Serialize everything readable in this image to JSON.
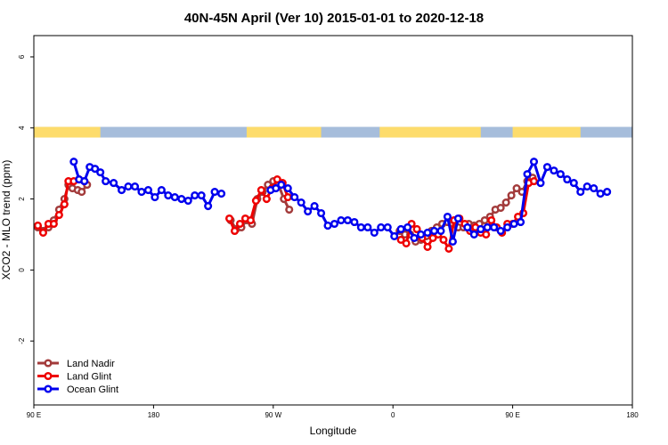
{
  "chart_data": {
    "type": "line",
    "title": "40N-45N April (Ver 10)   2015-01-01 to 2020-12-18",
    "xlabel": "Longitude",
    "ylabel": "XCO2 - MLO trend (ppm)",
    "xlim": [
      90,
      540
    ],
    "ylim": [
      -3.8,
      6.6
    ],
    "x_ticks": [
      {
        "value": 90,
        "label": "90 E"
      },
      {
        "value": 180,
        "label": "180"
      },
      {
        "value": 270,
        "label": "90 W"
      },
      {
        "value": 360,
        "label": "0"
      },
      {
        "value": 450,
        "label": "90 E"
      },
      {
        "value": 540,
        "label": "180"
      }
    ],
    "y_ticks": [
      {
        "value": -2,
        "label": "-2"
      },
      {
        "value": 0,
        "label": "0"
      },
      {
        "value": 2,
        "label": "2"
      },
      {
        "value": 4,
        "label": "4"
      },
      {
        "value": 6,
        "label": "6"
      }
    ],
    "surface_strip": {
      "y_range": [
        3.73,
        4.03
      ],
      "land_color": "#fddc6c",
      "ocean_color": "#a6bddb",
      "land_segments": [
        [
          90,
          140
        ],
        [
          250,
          306
        ],
        [
          350,
          426
        ],
        [
          450,
          501
        ]
      ]
    },
    "legend": {
      "position": "bottom-left",
      "entries": [
        "Land Nadir",
        "Land Glint",
        "Ocean Glint"
      ]
    },
    "series": [
      {
        "name": "Land Nadir",
        "color": "#a33b3b",
        "segments": [
          [
            [
              93,
              1.2
            ],
            [
              97,
              1.1
            ],
            [
              101,
              1.2
            ],
            [
              105,
              1.4
            ],
            [
              109,
              1.7
            ],
            [
              113,
              2.0
            ],
            [
              116,
              2.4
            ],
            [
              119,
              2.3
            ],
            [
              123,
              2.25
            ],
            [
              126,
              2.2
            ],
            [
              130,
              2.4
            ]
          ],
          [
            [
              238,
              1.4
            ],
            [
              242,
              1.15
            ],
            [
              246,
              1.2
            ],
            [
              250,
              1.4
            ],
            [
              254,
              1.3
            ],
            [
              258,
              2.0
            ],
            [
              262,
              2.2
            ],
            [
              266,
              2.4
            ],
            [
              270,
              2.5
            ],
            [
              274,
              2.4
            ],
            [
              278,
              2.0
            ],
            [
              282,
              1.7
            ]
          ],
          [
            [
              365,
              1.1
            ],
            [
              369,
              1.0
            ],
            [
              373,
              1.0
            ],
            [
              377,
              0.8
            ],
            [
              381,
              0.85
            ],
            [
              385,
              0.95
            ],
            [
              389,
              1.1
            ],
            [
              393,
              1.2
            ],
            [
              397,
              1.3
            ],
            [
              401,
              1.35
            ],
            [
              405,
              1.3
            ],
            [
              409,
              1.2
            ],
            [
              413,
              1.2
            ],
            [
              417,
              1.3
            ],
            [
              421,
              1.25
            ],
            [
              425,
              1.3
            ],
            [
              429,
              1.4
            ],
            [
              433,
              1.5
            ],
            [
              437,
              1.7
            ],
            [
              441,
              1.75
            ],
            [
              445,
              1.9
            ],
            [
              449,
              2.1
            ],
            [
              453,
              2.3
            ],
            [
              457,
              2.2
            ],
            [
              461,
              2.5
            ],
            [
              465,
              2.6
            ]
          ]
        ]
      },
      {
        "name": "Land Glint",
        "color": "#ee0000",
        "segments": [
          [
            [
              93,
              1.25
            ],
            [
              97,
              1.05
            ],
            [
              101,
              1.3
            ],
            [
              105,
              1.3
            ],
            [
              109,
              1.55
            ],
            [
              113,
              1.85
            ],
            [
              116,
              2.5
            ],
            [
              120,
              2.5
            ],
            [
              124,
              2.55
            ],
            [
              128,
              2.5
            ]
          ],
          [
            [
              237,
              1.45
            ],
            [
              241,
              1.1
            ],
            [
              245,
              1.3
            ],
            [
              249,
              1.45
            ],
            [
              253,
              1.4
            ],
            [
              257,
              1.95
            ],
            [
              261,
              2.25
            ],
            [
              265,
              2.0
            ],
            [
              269,
              2.3
            ],
            [
              273,
              2.55
            ],
            [
              277,
              2.45
            ],
            [
              281,
              2.05
            ]
          ],
          [
            [
              366,
              0.85
            ],
            [
              370,
              0.75
            ],
            [
              374,
              1.3
            ],
            [
              378,
              1.15
            ],
            [
              382,
              0.9
            ],
            [
              386,
              0.65
            ],
            [
              390,
              0.9
            ],
            [
              394,
              1.0
            ],
            [
              398,
              0.85
            ],
            [
              402,
              0.6
            ],
            [
              406,
              1.4
            ],
            [
              410,
              1.45
            ],
            [
              414,
              1.3
            ],
            [
              418,
              1.1
            ],
            [
              422,
              1.2
            ],
            [
              426,
              1.05
            ],
            [
              430,
              1.0
            ],
            [
              434,
              1.4
            ],
            [
              438,
              1.2
            ],
            [
              442,
              1.05
            ],
            [
              446,
              1.3
            ],
            [
              450,
              1.3
            ],
            [
              454,
              1.5
            ],
            [
              458,
              1.6
            ],
            [
              462,
              2.45
            ],
            [
              466,
              2.5
            ]
          ]
        ]
      },
      {
        "name": "Ocean Glint",
        "color": "#0000ee",
        "segments": [
          [
            [
              120,
              3.05
            ],
            [
              124,
              2.55
            ],
            [
              128,
              2.5
            ],
            [
              132,
              2.9
            ],
            [
              136,
              2.85
            ],
            [
              140,
              2.75
            ],
            [
              144,
              2.5
            ],
            [
              150,
              2.45
            ],
            [
              156,
              2.25
            ],
            [
              161,
              2.35
            ],
            [
              166,
              2.35
            ],
            [
              171,
              2.2
            ],
            [
              176,
              2.25
            ],
            [
              181,
              2.05
            ],
            [
              186,
              2.25
            ],
            [
              191,
              2.1
            ],
            [
              196,
              2.05
            ],
            [
              201,
              2.0
            ],
            [
              206,
              1.95
            ],
            [
              211,
              2.1
            ],
            [
              216,
              2.1
            ],
            [
              221,
              1.8
            ],
            [
              226,
              2.2
            ],
            [
              231,
              2.15
            ]
          ],
          [
            [
              268,
              2.25
            ],
            [
              272,
              2.3
            ],
            [
              276,
              2.4
            ],
            [
              281,
              2.3
            ],
            [
              286,
              2.05
            ],
            [
              291,
              1.9
            ],
            [
              296,
              1.65
            ],
            [
              301,
              1.8
            ],
            [
              306,
              1.6
            ],
            [
              311,
              1.25
            ],
            [
              316,
              1.3
            ],
            [
              321,
              1.4
            ],
            [
              326,
              1.4
            ],
            [
              331,
              1.35
            ],
            [
              336,
              1.2
            ],
            [
              341,
              1.2
            ],
            [
              346,
              1.05
            ],
            [
              351,
              1.2
            ],
            [
              356,
              1.2
            ],
            [
              361,
              0.95
            ],
            [
              366,
              1.15
            ],
            [
              371,
              1.2
            ],
            [
              376,
              0.9
            ],
            [
              381,
              1.0
            ],
            [
              386,
              1.05
            ],
            [
              391,
              1.1
            ],
            [
              396,
              1.1
            ],
            [
              401,
              1.5
            ],
            [
              405,
              0.8
            ],
            [
              409,
              1.45
            ]
          ],
          [
            [
              416,
              1.2
            ],
            [
              421,
              1.0
            ],
            [
              426,
              1.15
            ],
            [
              431,
              1.2
            ],
            [
              436,
              1.2
            ],
            [
              441,
              1.1
            ],
            [
              446,
              1.2
            ],
            [
              451,
              1.3
            ],
            [
              456,
              1.35
            ],
            [
              461,
              2.7
            ],
            [
              466,
              3.05
            ],
            [
              471,
              2.45
            ],
            [
              476,
              2.9
            ],
            [
              481,
              2.8
            ],
            [
              486,
              2.7
            ],
            [
              491,
              2.55
            ],
            [
              496,
              2.45
            ],
            [
              501,
              2.2
            ],
            [
              506,
              2.35
            ],
            [
              511,
              2.3
            ],
            [
              516,
              2.15
            ],
            [
              521,
              2.2
            ]
          ]
        ]
      }
    ]
  }
}
